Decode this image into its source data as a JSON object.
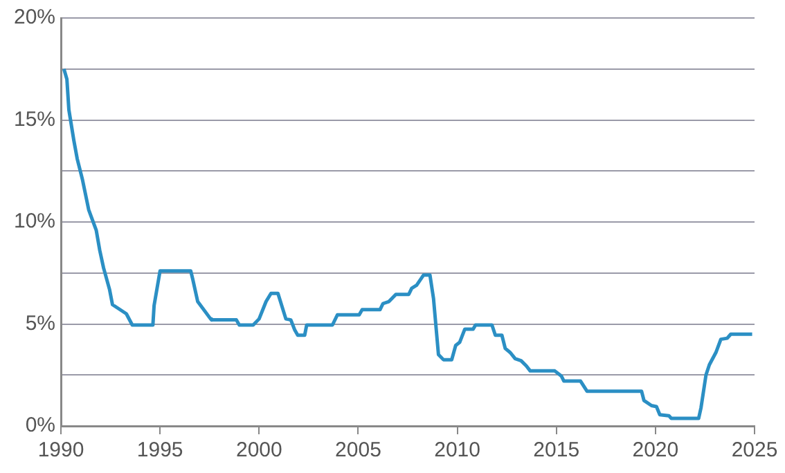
{
  "chart_data": {
    "type": "line",
    "x": [
      1990.15,
      1990.3,
      1990.4,
      1990.65,
      1990.82,
      1991.08,
      1991.4,
      1991.78,
      1991.96,
      1992.15,
      1992.45,
      1992.6,
      1993.3,
      1993.6,
      1994.64,
      1994.7,
      1995.0,
      1996.55,
      1996.65,
      1996.9,
      1997.55,
      1997.6,
      1998.85,
      1999.0,
      1999.7,
      2000.0,
      2000.35,
      2000.6,
      2000.95,
      2001.35,
      2001.6,
      2001.8,
      2001.95,
      2002.3,
      2002.4,
      2003.7,
      2003.95,
      2005.05,
      2005.2,
      2006.1,
      2006.25,
      2006.55,
      2006.9,
      2007.55,
      2007.7,
      2007.95,
      2008.3,
      2008.62,
      2008.8,
      2009.05,
      2009.3,
      2009.72,
      2009.92,
      2010.12,
      2010.38,
      2010.8,
      2010.92,
      2011.75,
      2011.92,
      2012.25,
      2012.42,
      2012.67,
      2012.92,
      2013.22,
      2013.48,
      2013.68,
      2014.92,
      2015.25,
      2015.38,
      2016.22,
      2016.55,
      2019.3,
      2019.42,
      2019.8,
      2020.05,
      2020.22,
      2020.68,
      2020.8,
      2022.18,
      2022.3,
      2022.55,
      2022.72,
      2023.05,
      2023.3,
      2023.62,
      2023.8,
      2024.88
    ],
    "series": [
      {
        "color": "#2b8fc4",
        "values": [
          17.5,
          17.0,
          15.5,
          14.0,
          13.1,
          12.1,
          10.6,
          9.6,
          8.6,
          7.75,
          6.7,
          5.95,
          5.5,
          4.95,
          4.95,
          5.9,
          7.6,
          7.6,
          7.2,
          6.1,
          5.25,
          5.2,
          5.2,
          4.95,
          4.95,
          5.25,
          6.1,
          6.5,
          6.5,
          5.25,
          5.2,
          4.7,
          4.45,
          4.45,
          4.95,
          4.95,
          5.45,
          5.45,
          5.7,
          5.7,
          6.0,
          6.1,
          6.45,
          6.45,
          6.75,
          6.9,
          7.4,
          7.4,
          6.25,
          3.5,
          3.25,
          3.25,
          3.95,
          4.1,
          4.75,
          4.75,
          4.95,
          4.95,
          4.45,
          4.45,
          3.8,
          3.6,
          3.3,
          3.2,
          2.95,
          2.7,
          2.7,
          2.45,
          2.2,
          2.2,
          1.7,
          1.7,
          1.25,
          1.0,
          0.95,
          0.55,
          0.5,
          0.375,
          0.375,
          0.9,
          2.5,
          3.0,
          3.6,
          4.25,
          4.3,
          4.5,
          4.5
        ]
      }
    ],
    "xlim": [
      1990,
      2025
    ],
    "xticks": [
      1990,
      1995,
      2000,
      2005,
      2010,
      2015,
      2020,
      2025
    ],
    "ylim": [
      0,
      20
    ],
    "yticks": [
      {
        "value": 0,
        "label": "0%"
      },
      {
        "value": 2.5,
        "label": null
      },
      {
        "value": 5,
        "label": "5%"
      },
      {
        "value": 7.5,
        "label": null
      },
      {
        "value": 10,
        "label": "10%"
      },
      {
        "value": 12.5,
        "label": null
      },
      {
        "value": 15,
        "label": "15%"
      },
      {
        "value": 17.5,
        "label": null
      },
      {
        "value": 20,
        "label": "20%"
      }
    ],
    "grid": "y",
    "legend": false,
    "marker": "none",
    "line_style": "solid"
  }
}
